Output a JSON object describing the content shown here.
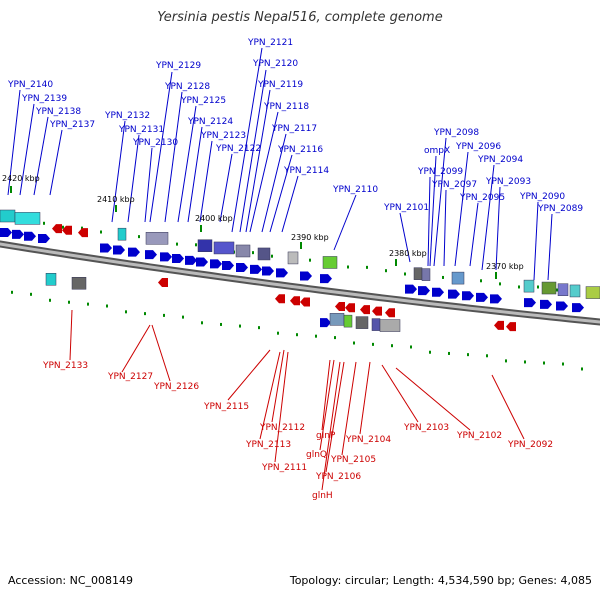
{
  "title": "Yersinia pestis Nepal516, complete genome",
  "footer": {
    "accession": "Accession: NC_008149",
    "summary": "Topology: circular; Length: 4,534,590 bp; Genes: 4,085"
  },
  "colors": {
    "plus_strand": "#0000cc",
    "minus_strand": "#cc0000",
    "tick": "#008800",
    "backbone": "#888888"
  },
  "scale_labels": [
    "2420 kbp",
    "2410 kbp",
    "2400 kbp",
    "2390 kbp",
    "2380 kbp",
    "2370 kbp"
  ],
  "plus_genes": [
    "YPN_2140",
    "YPN_2139",
    "YPN_2138",
    "YPN_2137",
    "YPN_2132",
    "YPN_2131",
    "YPN_2130",
    "YPN_2129",
    "YPN_2128",
    "YPN_2125",
    "YPN_2124",
    "YPN_2123",
    "YPN_2122",
    "YPN_2121",
    "YPN_2120",
    "YPN_2119",
    "YPN_2118",
    "YPN_2117",
    "YPN_2116",
    "YPN_2114",
    "YPN_2110",
    "YPN_2101",
    "ompX",
    "YPN_2099",
    "YPN_2098",
    "YPN_2097",
    "YPN_2096",
    "YPN_2095",
    "YPN_2094",
    "YPN_2093",
    "YPN_2090",
    "YPN_2089"
  ],
  "minus_genes": [
    "YPN_2133",
    "YPN_2127",
    "YPN_2126",
    "YPN_2115",
    "YPN_2112",
    "YPN_2113",
    "YPN_2111",
    "glnP",
    "glnQ",
    "glnH",
    "YPN_2106",
    "YPN_2105",
    "YPN_2104",
    "YPN_2103",
    "YPN_2102",
    "YPN_2092"
  ]
}
